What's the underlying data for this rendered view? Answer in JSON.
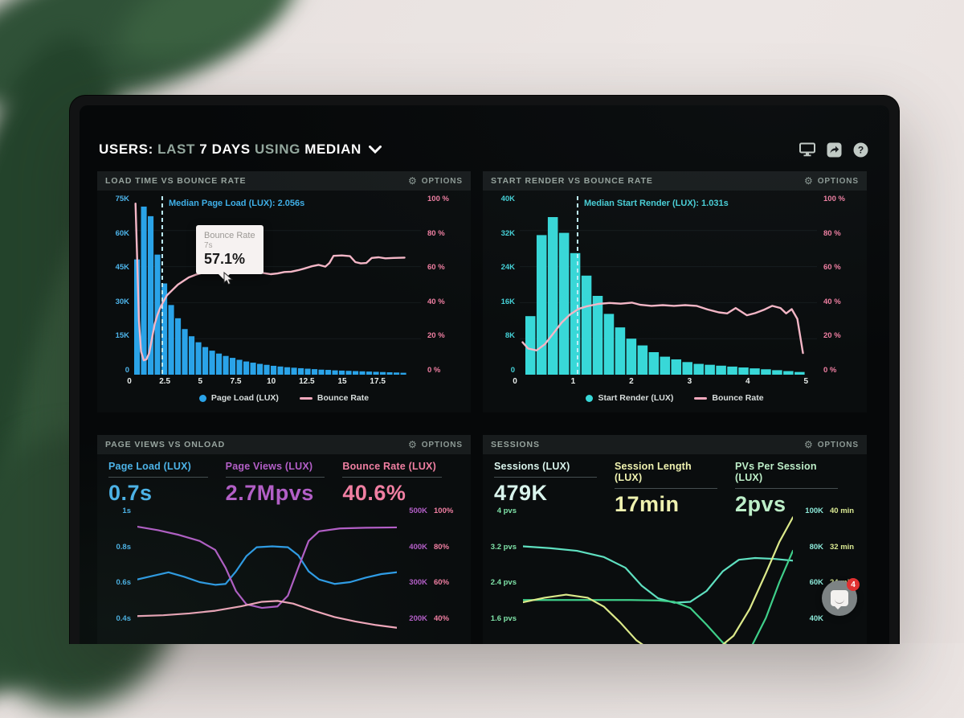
{
  "header": {
    "segments": [
      {
        "text": "USERS:",
        "em": true
      },
      {
        "text": " LAST ",
        "em": false
      },
      {
        "text": "7 DAYS",
        "em": true
      },
      {
        "text": " USING ",
        "em": false
      },
      {
        "text": "MEDIAN",
        "em": true
      }
    ],
    "icons": [
      "display-icon",
      "share-icon",
      "help-icon"
    ]
  },
  "labels": {
    "options": "OPTIONS"
  },
  "colors": {
    "accent_blue": "#2aa3e8",
    "accent_cyan": "#38d8d8",
    "accent_pink": "#f2a8bc",
    "pink_text": "#f07fa2",
    "blue_text": "#4db4ea",
    "cyan_text": "#45d2d8"
  },
  "panels": {
    "load_time": {
      "title": "LOAD TIME VS BOUNCE RATE"
    },
    "start_render": {
      "title": "START RENDER VS BOUNCE RATE"
    },
    "page_views": {
      "title": "PAGE VIEWS VS ONLOAD"
    },
    "sessions": {
      "title": "SESSIONS"
    }
  },
  "chat": {
    "badge": "4"
  },
  "chart_data": {
    "load_time": {
      "type": "bar+line",
      "title": "LOAD TIME VS BOUNCE RATE",
      "x_max": 21,
      "bar_start": 0,
      "bin": 0.5,
      "bar_series": "Page Load (LUX)",
      "bar_color": "#2aa3e8",
      "y_max_k": 75,
      "bars_k": [
        48,
        70,
        66,
        50,
        38,
        29,
        23.5,
        19,
        16,
        13.5,
        11.5,
        10,
        8.8,
        7.8,
        7,
        6.2,
        5.5,
        5,
        4.5,
        4.1,
        3.7,
        3.4,
        3.1,
        2.9,
        2.7,
        2.5,
        2.3,
        2.1,
        2,
        1.8,
        1.7,
        1.6,
        1.5,
        1.4,
        1.3,
        1.2,
        1.1,
        1,
        0.9,
        0.8
      ],
      "line_series": "Bounce Rate",
      "line_color": "#f4b6c6",
      "bounce_pct": [
        [
          0.1,
          95
        ],
        [
          0.2,
          70
        ],
        [
          0.35,
          30
        ],
        [
          0.5,
          13
        ],
        [
          0.7,
          8
        ],
        [
          0.9,
          8.5
        ],
        [
          1.1,
          12
        ],
        [
          1.3,
          20
        ],
        [
          1.5,
          28
        ],
        [
          1.7,
          33
        ],
        [
          1.9,
          37
        ],
        [
          2.1,
          40
        ],
        [
          2.4,
          44
        ],
        [
          2.8,
          47
        ],
        [
          3.2,
          50
        ],
        [
          3.6,
          52
        ],
        [
          4,
          54
        ],
        [
          4.5,
          55.5
        ],
        [
          5,
          56.5
        ],
        [
          5.5,
          57
        ],
        [
          6,
          57.2
        ],
        [
          6.5,
          57.4
        ],
        [
          7,
          57.1
        ],
        [
          7.5,
          57.6
        ],
        [
          8,
          58
        ],
        [
          8.5,
          57.8
        ],
        [
          9,
          57.2
        ],
        [
          9.5,
          56.4
        ],
        [
          10,
          55.8
        ],
        [
          10.5,
          56.2
        ],
        [
          11,
          57
        ],
        [
          11.5,
          57.2
        ],
        [
          12,
          58
        ],
        [
          12.5,
          59
        ],
        [
          13,
          60.2
        ],
        [
          13.5,
          61
        ],
        [
          14,
          60
        ],
        [
          14.3,
          62
        ],
        [
          14.6,
          66
        ],
        [
          15.2,
          66.2
        ],
        [
          15.8,
          65.8
        ],
        [
          16.2,
          62.5
        ],
        [
          16.6,
          61.8
        ],
        [
          17,
          62
        ],
        [
          17.4,
          64.8
        ],
        [
          17.9,
          65.2
        ],
        [
          18.4,
          64.6
        ],
        [
          19,
          64.8
        ],
        [
          19.8,
          65
        ]
      ],
      "x_ticks": [
        {
          "v": 0,
          "t": "0"
        },
        {
          "v": 2.5,
          "t": "2.5"
        },
        {
          "v": 5,
          "t": "5"
        },
        {
          "v": 7.5,
          "t": "7.5"
        },
        {
          "v": 10,
          "t": "10"
        },
        {
          "v": 12.5,
          "t": "12.5"
        },
        {
          "v": 15,
          "t": "15"
        },
        {
          "v": 17.5,
          "t": "17.5"
        }
      ],
      "y_left": [
        "75K",
        "60K",
        "45K",
        "30K",
        "15K",
        "0"
      ],
      "y_left_color": "#4db4ea",
      "y_right": [
        "100 %",
        "80 %",
        "60 %",
        "40 %",
        "20 %",
        "0 %"
      ],
      "median": {
        "x": 2.056,
        "label": "Median Page Load (LUX): 2.056s",
        "color": "#3fb0e8"
      },
      "tooltip": {
        "x": 7,
        "title": "Bounce Rate",
        "sub": "7s",
        "value": "57.1%"
      },
      "legend": [
        {
          "series": "Page Load (LUX)",
          "swatch": "dot",
          "color": "#2aa3e8"
        },
        {
          "series": "Bounce Rate",
          "swatch": "line",
          "color": "#f2a8bc"
        }
      ]
    },
    "start_render": {
      "type": "bar+line",
      "title": "START RENDER VS BOUNCE RATE",
      "x_max": 5.3,
      "bar_start": 0.1,
      "bin": 0.2,
      "bar_series": "Start Render (LUX)",
      "bar_color": "#38d8d8",
      "y_max_k": 40,
      "bars_k": [
        13,
        31,
        35,
        31.5,
        27,
        22,
        17.5,
        13.5,
        10.5,
        8,
        6.5,
        5,
        4,
        3.4,
        2.8,
        2.4,
        2.2,
        2,
        1.8,
        1.6,
        1.4,
        1.2,
        1,
        0.8,
        0.6
      ],
      "line_series": "Bounce Rate",
      "line_color": "#f4b6c6",
      "bounce_pct": [
        [
          0.05,
          18
        ],
        [
          0.15,
          14.5
        ],
        [
          0.3,
          13.5
        ],
        [
          0.45,
          17
        ],
        [
          0.6,
          23
        ],
        [
          0.75,
          29
        ],
        [
          0.9,
          33.5
        ],
        [
          1.05,
          36.5
        ],
        [
          1.2,
          38
        ],
        [
          1.4,
          39.3
        ],
        [
          1.6,
          39.8
        ],
        [
          1.8,
          39.4
        ],
        [
          2,
          40
        ],
        [
          2.15,
          38.8
        ],
        [
          2.35,
          38.2
        ],
        [
          2.55,
          38.6
        ],
        [
          2.75,
          38.2
        ],
        [
          2.95,
          38.6
        ],
        [
          3.15,
          38.2
        ],
        [
          3.35,
          36.2
        ],
        [
          3.55,
          34.6
        ],
        [
          3.7,
          34
        ],
        [
          3.85,
          37
        ],
        [
          3.95,
          35
        ],
        [
          4.05,
          33
        ],
        [
          4.2,
          34.2
        ],
        [
          4.35,
          36
        ],
        [
          4.5,
          38.2
        ],
        [
          4.65,
          37
        ],
        [
          4.75,
          34
        ],
        [
          4.85,
          36.4
        ],
        [
          4.95,
          31
        ],
        [
          5.05,
          12
        ]
      ],
      "x_ticks": [
        {
          "v": 0,
          "t": "0"
        },
        {
          "v": 1,
          "t": "1"
        },
        {
          "v": 2,
          "t": "2"
        },
        {
          "v": 3,
          "t": "3"
        },
        {
          "v": 4,
          "t": "4"
        },
        {
          "v": 5,
          "t": "5"
        }
      ],
      "y_left": [
        "40K",
        "32K",
        "24K",
        "16K",
        "8K",
        "0"
      ],
      "y_left_color": "#45d2d8",
      "y_right": [
        "100 %",
        "80 %",
        "60 %",
        "40 %",
        "20 %",
        "0 %"
      ],
      "median": {
        "x": 1.031,
        "label": "Median Start Render (LUX): 1.031s",
        "color": "#49d0d8"
      },
      "legend": [
        {
          "series": "Start Render (LUX)",
          "swatch": "dot",
          "color": "#38d8d8"
        },
        {
          "series": "Bounce Rate",
          "swatch": "line",
          "color": "#f2a8bc"
        }
      ]
    },
    "page_views": {
      "type": "line",
      "title": "PAGE VIEWS VS ONLOAD",
      "metrics": [
        {
          "label": "Page Load (LUX)",
          "value": "0.7s",
          "color": "#4db4ea"
        },
        {
          "label": "Page Views (LUX)",
          "value": "2.7Mpvs",
          "color": "#b45fc8"
        },
        {
          "label": "Bounce Rate (LUX)",
          "value": "40.6%",
          "color": "#f07fa2"
        }
      ],
      "left_axis": {
        "labels": [
          "1s",
          "0.8s",
          "0.6s",
          "0.4s"
        ],
        "color": "#4db4ea",
        "fracs": [
          0,
          0.25,
          0.5,
          0.75
        ]
      },
      "right_axis_1": {
        "labels": [
          "500K",
          "400K",
          "300K",
          "200K"
        ],
        "color": "#b45fc8",
        "fracs": [
          0,
          0.25,
          0.5,
          0.75
        ]
      },
      "right_axis_2": {
        "labels": [
          "100%",
          "80%",
          "60%",
          "40%"
        ],
        "color": "#f07fa2",
        "fracs": [
          0,
          0.25,
          0.5,
          0.75
        ]
      },
      "series": [
        {
          "name": "Page Load (LUX)",
          "color": "#2f9de8",
          "domain": [
            0.2,
            1
          ],
          "points": [
            [
              0,
              0.615
            ],
            [
              0.06,
              0.635
            ],
            [
              0.12,
              0.655
            ],
            [
              0.18,
              0.63
            ],
            [
              0.24,
              0.6
            ],
            [
              0.3,
              0.585
            ],
            [
              0.34,
              0.59
            ],
            [
              0.38,
              0.66
            ],
            [
              0.42,
              0.745
            ],
            [
              0.46,
              0.795
            ],
            [
              0.52,
              0.8
            ],
            [
              0.58,
              0.795
            ],
            [
              0.62,
              0.75
            ],
            [
              0.66,
              0.66
            ],
            [
              0.7,
              0.615
            ],
            [
              0.76,
              0.59
            ],
            [
              0.82,
              0.6
            ],
            [
              0.88,
              0.625
            ],
            [
              0.94,
              0.645
            ],
            [
              1,
              0.655
            ]
          ]
        },
        {
          "name": "Page Views (LUX)",
          "color": "#b45fc8",
          "domain": [
            100,
            500
          ],
          "points": [
            [
              0,
              455
            ],
            [
              0.08,
              445
            ],
            [
              0.16,
              432
            ],
            [
              0.24,
              415
            ],
            [
              0.3,
              390
            ],
            [
              0.34,
              340
            ],
            [
              0.38,
              275
            ],
            [
              0.42,
              238
            ],
            [
              0.48,
              228
            ],
            [
              0.54,
              232
            ],
            [
              0.58,
              262
            ],
            [
              0.62,
              340
            ],
            [
              0.66,
              415
            ],
            [
              0.7,
              442
            ],
            [
              0.78,
              450
            ],
            [
              0.88,
              452
            ],
            [
              1,
              453
            ]
          ]
        },
        {
          "name": "Bounce Rate (LUX)",
          "color": "#f2a8bc",
          "domain": [
            20,
            100
          ],
          "points": [
            [
              0,
              41
            ],
            [
              0.1,
              41.5
            ],
            [
              0.2,
              42.5
            ],
            [
              0.3,
              44
            ],
            [
              0.4,
              46.5
            ],
            [
              0.48,
              49
            ],
            [
              0.54,
              49.5
            ],
            [
              0.6,
              48
            ],
            [
              0.68,
              44
            ],
            [
              0.76,
              40.5
            ],
            [
              0.84,
              38
            ],
            [
              0.92,
              36
            ],
            [
              1,
              34.5
            ]
          ]
        }
      ]
    },
    "sessions": {
      "type": "line",
      "title": "SESSIONS",
      "metrics": [
        {
          "label": "Sessions (LUX)",
          "value": "479K",
          "color": "#d9f4ec"
        },
        {
          "label": "Session Length (LUX)",
          "value": "17min",
          "color": "#eff2b0"
        },
        {
          "label": "PVs Per Session (LUX)",
          "value": "2pvs",
          "color": "#bdeec8"
        }
      ],
      "left_axis": {
        "labels": [
          "4 pvs",
          "3.2 pvs",
          "2.4 pvs",
          "1.6 pvs"
        ],
        "color": "#7fe3a8",
        "fracs": [
          0,
          0.25,
          0.5,
          0.75
        ]
      },
      "right_axis_1": {
        "labels": [
          "100K",
          "80K",
          "60K",
          "40K"
        ],
        "color": "#8ce8d8",
        "fracs": [
          0,
          0.25,
          0.5,
          0.75
        ]
      },
      "right_axis_2": {
        "labels": [
          "40 min",
          "32 min",
          "24 min"
        ],
        "color": "#d9e892",
        "fracs": [
          0,
          0.25,
          0.5
        ]
      },
      "series": [
        {
          "name": "Sessions (LUX)",
          "color": "#5fe0c0",
          "domain": [
            20,
            100
          ],
          "points": [
            [
              0,
              80
            ],
            [
              0.1,
              79
            ],
            [
              0.2,
              77.5
            ],
            [
              0.3,
              74
            ],
            [
              0.38,
              68
            ],
            [
              0.44,
              58
            ],
            [
              0.5,
              51
            ],
            [
              0.56,
              48.5
            ],
            [
              0.62,
              49
            ],
            [
              0.68,
              55
            ],
            [
              0.74,
              66
            ],
            [
              0.8,
              72.5
            ],
            [
              0.86,
              73.5
            ],
            [
              0.93,
              73
            ],
            [
              1,
              72
            ]
          ]
        },
        {
          "name": "PVs Per Session (LUX)",
          "color": "#3fcf8a",
          "domain": [
            0.8,
            4
          ],
          "points": [
            [
              0,
              2
            ],
            [
              0.4,
              2
            ],
            [
              0.5,
              1.99
            ],
            [
              0.56,
              1.96
            ],
            [
              0.62,
              1.82
            ],
            [
              0.68,
              1.45
            ],
            [
              0.74,
              1.05
            ],
            [
              0.8,
              0.85
            ],
            [
              0.85,
              1
            ],
            [
              0.9,
              1.6
            ],
            [
              0.95,
              2.4
            ],
            [
              1,
              3.1
            ]
          ]
        },
        {
          "name": "Session Length (LUX)",
          "color": "#dce98a",
          "domain": [
            8,
            40
          ],
          "points": [
            [
              0,
              19.5
            ],
            [
              0.08,
              20.5
            ],
            [
              0.16,
              21.2
            ],
            [
              0.24,
              20.5
            ],
            [
              0.3,
              18.5
            ],
            [
              0.36,
              15
            ],
            [
              0.42,
              11
            ],
            [
              0.48,
              8.5
            ],
            [
              0.55,
              7
            ],
            [
              0.62,
              7
            ],
            [
              0.7,
              8
            ],
            [
              0.78,
              12
            ],
            [
              0.84,
              18
            ],
            [
              0.9,
              26
            ],
            [
              0.95,
              33
            ],
            [
              1,
              38.5
            ]
          ]
        }
      ]
    }
  }
}
